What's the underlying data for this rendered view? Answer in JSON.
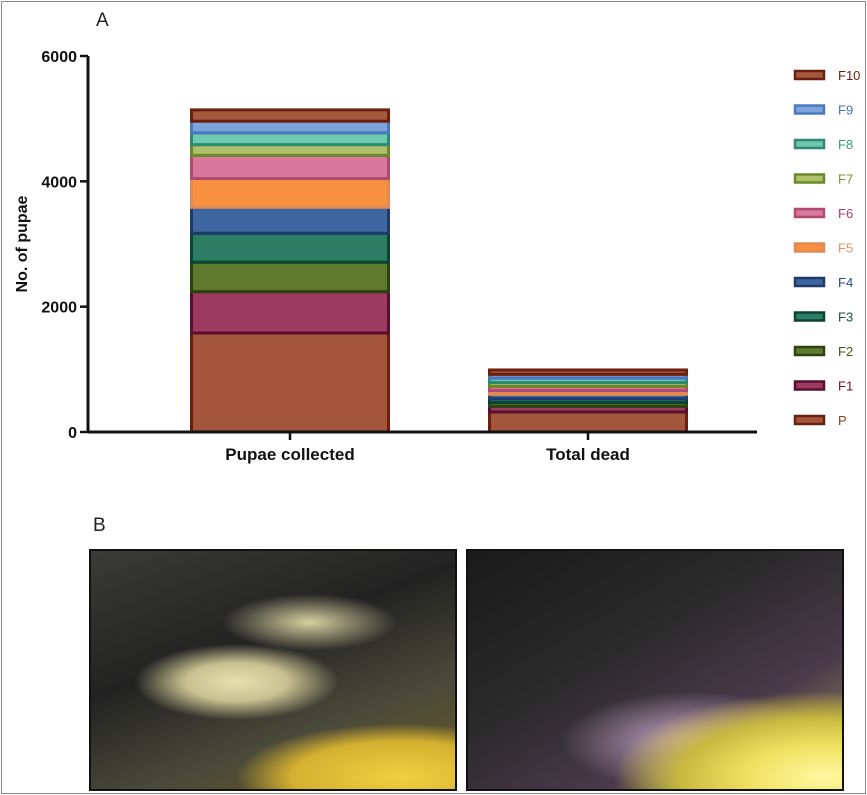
{
  "panels": {
    "a_label": "A",
    "b_label": "B"
  },
  "chart_data": {
    "type": "bar",
    "stacked": true,
    "categories": [
      "Pupae collected",
      "Total dead"
    ],
    "ylabel": "No. of pupae",
    "xlabel": "",
    "ylim": [
      0,
      6000
    ],
    "yticks": [
      0,
      2000,
      4000,
      6000
    ],
    "grid": false,
    "legend_placement": "right",
    "series": [
      {
        "name": "P",
        "values": [
          1580,
          320
        ],
        "color": "#a4563c",
        "edge": "#6b1f0c"
      },
      {
        "name": "F1",
        "values": [
          660,
          90
        ],
        "color": "#9c3a5f",
        "edge": "#5a0f30"
      },
      {
        "name": "F2",
        "values": [
          470,
          60
        ],
        "color": "#5f7a2e",
        "edge": "#2a4410"
      },
      {
        "name": "F3",
        "values": [
          460,
          60
        ],
        "color": "#2d7d64",
        "edge": "#0c4434"
      },
      {
        "name": "F4",
        "values": [
          415,
          70
        ],
        "color": "#3e66a0",
        "edge": "#1d3a68"
      },
      {
        "name": "F5",
        "values": [
          460,
          60
        ],
        "color": "#f7913f",
        "edge": "#e08a5a"
      },
      {
        "name": "F6",
        "values": [
          370,
          70
        ],
        "color": "#d8789a",
        "edge": "#b04a70"
      },
      {
        "name": "F7",
        "values": [
          170,
          60
        ],
        "color": "#aec06a",
        "edge": "#6a8a2a"
      },
      {
        "name": "F8",
        "values": [
          190,
          70
        ],
        "color": "#6fc8b0",
        "edge": "#2e8a70"
      },
      {
        "name": "F9",
        "values": [
          185,
          60
        ],
        "color": "#7ea4dc",
        "edge": "#4a78c0"
      },
      {
        "name": "F10",
        "values": [
          180,
          70
        ],
        "color": "#a55a40",
        "edge": "#6b1f0c"
      }
    ],
    "legend_text_colors": [
      "#8a3a1a",
      "#6a1030",
      "#3a5a10",
      "#1a5040",
      "#2a4a80",
      "#e09070",
      "#a84070",
      "#7a9030",
      "#3a9a80",
      "#4a70b0",
      "#6b1f0c"
    ]
  }
}
